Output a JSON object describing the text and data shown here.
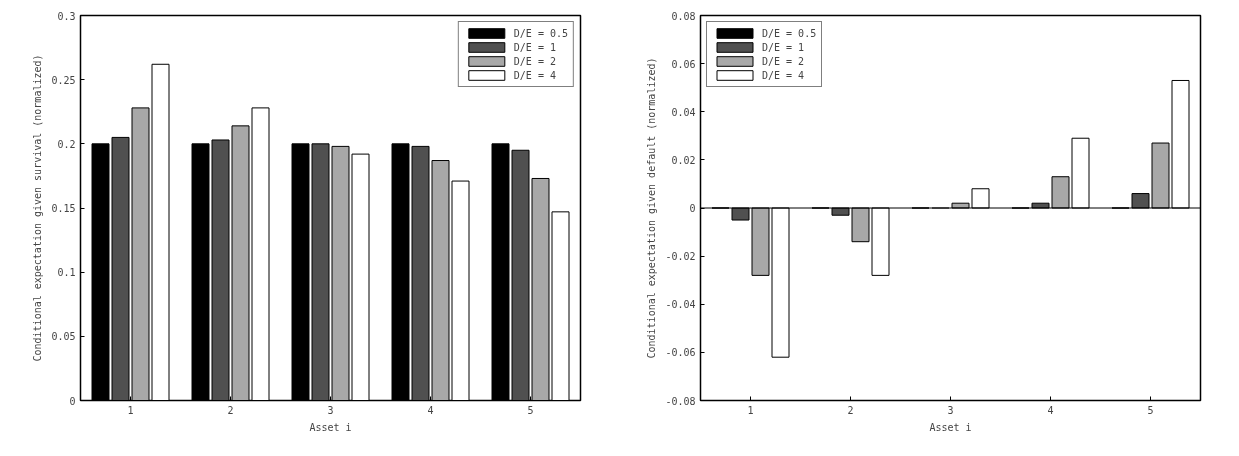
{
  "chart_data": [
    {
      "type": "bar",
      "xlabel": "Asset i",
      "ylabel": "Conditional expectation given survival (normalized)",
      "categories": [
        "1",
        "2",
        "3",
        "4",
        "5"
      ],
      "series": [
        {
          "name": "D/E = 0.5",
          "color": "#000000",
          "values": [
            0.2,
            0.2,
            0.2,
            0.2,
            0.2
          ]
        },
        {
          "name": "D/E = 1",
          "color": "#505050",
          "values": [
            0.205,
            0.203,
            0.2,
            0.198,
            0.195
          ]
        },
        {
          "name": "D/E = 2",
          "color": "#a8a8a8",
          "values": [
            0.228,
            0.214,
            0.198,
            0.187,
            0.173
          ]
        },
        {
          "name": "D/E = 4",
          "color": "#ffffff",
          "values": [
            0.262,
            0.228,
            0.192,
            0.171,
            0.147
          ]
        }
      ],
      "ylim": [
        0,
        0.3
      ],
      "yticks": [
        0,
        {
          "value": 0.05,
          "label": "0.05"
        },
        {
          "value": 0.1,
          "label": "0.1"
        },
        {
          "value": 0.15,
          "label": "0.15"
        },
        {
          "value": 0.2,
          "label": "0.2"
        },
        {
          "value": 0.25,
          "label": "0.25"
        },
        {
          "value": 0.3,
          "label": "0.3"
        }
      ],
      "grid": false,
      "legend": "top right"
    },
    {
      "type": "bar",
      "xlabel": "Asset i",
      "ylabel": "Conditional expectation given default (normalized)",
      "categories": [
        "1",
        "2",
        "3",
        "4",
        "5"
      ],
      "series": [
        {
          "name": "D/E = 0.5",
          "color": "#000000",
          "values": [
            0,
            0,
            0,
            0,
            0
          ]
        },
        {
          "name": "D/E = 1",
          "color": "#505050",
          "values": [
            -0.005,
            -0.003,
            0,
            0.002,
            0.006
          ]
        },
        {
          "name": "D/E = 2",
          "color": "#a8a8a8",
          "values": [
            -0.028,
            -0.014,
            0.002,
            0.013,
            0.027
          ]
        },
        {
          "name": "D/E = 4",
          "color": "#ffffff",
          "values": [
            -0.062,
            -0.028,
            0.008,
            0.029,
            0.053
          ]
        }
      ],
      "ylim": [
        -0.08,
        0.08
      ],
      "yticks": [
        {
          "value": -0.08,
          "label": "-0.08"
        },
        {
          "value": -0.06,
          "label": "-0.06"
        },
        {
          "value": -0.04,
          "label": "-0.04"
        },
        {
          "value": -0.02,
          "label": "-0.02"
        },
        0,
        {
          "value": 0.02,
          "label": "0.02"
        },
        {
          "value": 0.04,
          "label": "0.04"
        },
        {
          "value": 0.06,
          "label": "0.06"
        },
        {
          "value": 0.08,
          "label": "0.08"
        }
      ],
      "ref_lines": [
        {
          "axis": "y",
          "value": 0
        }
      ],
      "grid": false,
      "legend": "top left"
    }
  ]
}
